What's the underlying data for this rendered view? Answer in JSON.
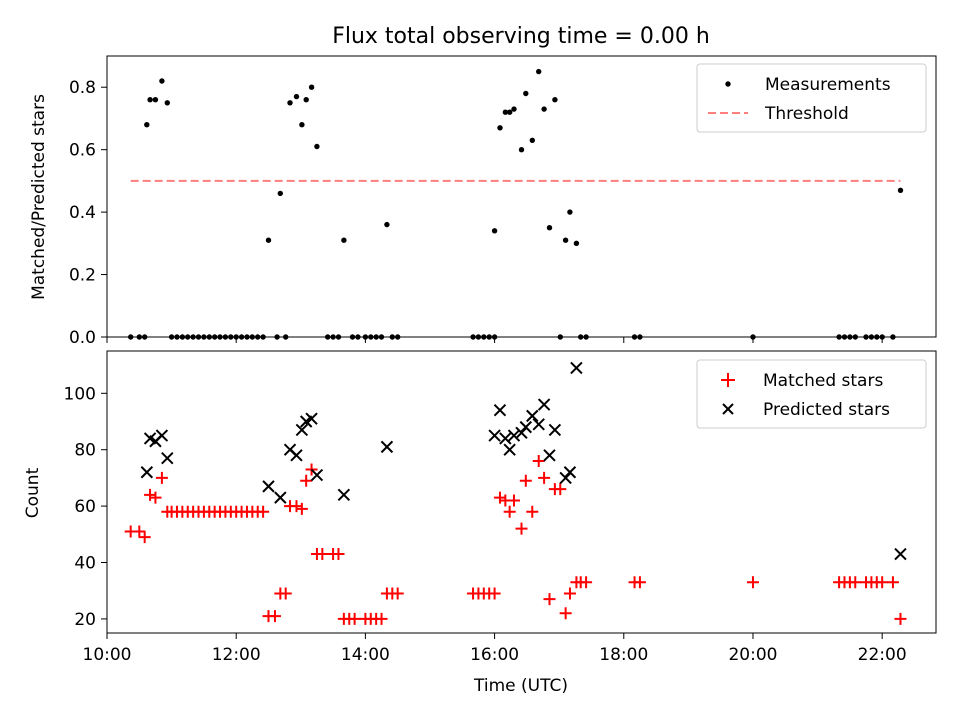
{
  "chart_data": [
    {
      "type": "scatter",
      "title": "Flux total observing time = 0.00 h",
      "xlabel": "",
      "ylabel": "Matched/Predicted stars",
      "xlim": [
        "10:00",
        "22:50"
      ],
      "ylim": [
        0,
        0.9
      ],
      "yticks": [
        0.0,
        0.2,
        0.4,
        0.6,
        0.8
      ],
      "ytick_labels": [
        "0.0",
        "0.2",
        "0.4",
        "0.6",
        "0.8"
      ],
      "grid": false,
      "legend_position": "top-right",
      "series": [
        {
          "name": "Measurements",
          "kind": "points",
          "color": "#000000",
          "points": [
            [
              "10:22",
              0.0
            ],
            [
              "10:30",
              0.0
            ],
            [
              "10:35",
              0.0
            ],
            [
              "10:37",
              0.68
            ],
            [
              "10:40",
              0.76
            ],
            [
              "10:45",
              0.76
            ],
            [
              "10:51",
              0.82
            ],
            [
              "10:56",
              0.75
            ],
            [
              "11:00",
              0.0
            ],
            [
              "11:05",
              0.0
            ],
            [
              "11:10",
              0.0
            ],
            [
              "11:15",
              0.0
            ],
            [
              "11:20",
              0.0
            ],
            [
              "11:25",
              0.0
            ],
            [
              "11:30",
              0.0
            ],
            [
              "11:35",
              0.0
            ],
            [
              "11:40",
              0.0
            ],
            [
              "11:45",
              0.0
            ],
            [
              "11:50",
              0.0
            ],
            [
              "11:55",
              0.0
            ],
            [
              "12:00",
              0.0
            ],
            [
              "12:05",
              0.0
            ],
            [
              "12:10",
              0.0
            ],
            [
              "12:15",
              0.0
            ],
            [
              "12:20",
              0.0
            ],
            [
              "12:25",
              0.0
            ],
            [
              "12:30",
              0.31
            ],
            [
              "12:38",
              0.0
            ],
            [
              "12:41",
              0.46
            ],
            [
              "12:46",
              0.0
            ],
            [
              "12:50",
              0.75
            ],
            [
              "12:56",
              0.77
            ],
            [
              "13:01",
              0.68
            ],
            [
              "13:05",
              0.76
            ],
            [
              "13:10",
              0.8
            ],
            [
              "13:15",
              0.61
            ],
            [
              "13:25",
              0.0
            ],
            [
              "13:30",
              0.0
            ],
            [
              "13:35",
              0.0
            ],
            [
              "13:40",
              0.31
            ],
            [
              "13:48",
              0.0
            ],
            [
              "13:53",
              0.0
            ],
            [
              "14:00",
              0.0
            ],
            [
              "14:05",
              0.0
            ],
            [
              "14:10",
              0.0
            ],
            [
              "14:15",
              0.0
            ],
            [
              "14:20",
              0.36
            ],
            [
              "14:25",
              0.0
            ],
            [
              "14:30",
              0.0
            ],
            [
              "15:40",
              0.0
            ],
            [
              "15:45",
              0.0
            ],
            [
              "15:50",
              0.0
            ],
            [
              "15:55",
              0.0
            ],
            [
              "16:00",
              0.34
            ],
            [
              "16:00",
              0.0
            ],
            [
              "16:05",
              0.67
            ],
            [
              "16:10",
              0.72
            ],
            [
              "16:14",
              0.72
            ],
            [
              "16:18",
              0.73
            ],
            [
              "16:25",
              0.6
            ],
            [
              "16:29",
              0.78
            ],
            [
              "16:35",
              0.63
            ],
            [
              "16:41",
              0.85
            ],
            [
              "16:46",
              0.73
            ],
            [
              "16:51",
              0.35
            ],
            [
              "16:56",
              0.76
            ],
            [
              "17:01",
              0.0
            ],
            [
              "17:06",
              0.31
            ],
            [
              "17:10",
              0.4
            ],
            [
              "17:16",
              0.3
            ],
            [
              "17:20",
              0.0
            ],
            [
              "17:25",
              0.0
            ],
            [
              "18:10",
              0.0
            ],
            [
              "18:15",
              0.0
            ],
            [
              "20:00",
              0.0
            ],
            [
              "21:20",
              0.0
            ],
            [
              "21:25",
              0.0
            ],
            [
              "21:30",
              0.0
            ],
            [
              "21:35",
              0.0
            ],
            [
              "21:45",
              0.0
            ],
            [
              "21:50",
              0.0
            ],
            [
              "21:55",
              0.0
            ],
            [
              "22:00",
              0.0
            ],
            [
              "22:10",
              0.0
            ],
            [
              "22:17",
              0.47
            ]
          ]
        },
        {
          "name": "Threshold",
          "kind": "dashed-line",
          "color": "#ff7f7f",
          "points": [
            [
              "10:22",
              0.5
            ],
            [
              "22:17",
              0.5
            ]
          ]
        }
      ]
    },
    {
      "type": "scatter",
      "title": "",
      "xlabel": "Time (UTC)",
      "ylabel": "Count",
      "xlim": [
        "10:00",
        "22:50"
      ],
      "ylim": [
        15,
        115
      ],
      "xticks": [
        "10:00",
        "12:00",
        "14:00",
        "16:00",
        "18:00",
        "20:00",
        "22:00"
      ],
      "yticks": [
        20,
        40,
        60,
        80,
        100
      ],
      "ytick_labels": [
        "20",
        "40",
        "60",
        "80",
        "100"
      ],
      "grid": false,
      "legend_position": "top-right",
      "series": [
        {
          "name": "Matched stars",
          "kind": "plus",
          "color": "#ff0000",
          "points": [
            [
              "10:22",
              51
            ],
            [
              "10:30",
              51
            ],
            [
              "10:35",
              49
            ],
            [
              "10:40",
              64
            ],
            [
              "10:45",
              63
            ],
            [
              "10:51",
              70
            ],
            [
              "10:56",
              58
            ],
            [
              "11:00",
              58
            ],
            [
              "11:05",
              58
            ],
            [
              "11:10",
              58
            ],
            [
              "11:15",
              58
            ],
            [
              "11:20",
              58
            ],
            [
              "11:25",
              58
            ],
            [
              "11:30",
              58
            ],
            [
              "11:35",
              58
            ],
            [
              "11:40",
              58
            ],
            [
              "11:45",
              58
            ],
            [
              "11:50",
              58
            ],
            [
              "11:55",
              58
            ],
            [
              "12:00",
              58
            ],
            [
              "12:05",
              58
            ],
            [
              "12:10",
              58
            ],
            [
              "12:15",
              58
            ],
            [
              "12:20",
              58
            ],
            [
              "12:25",
              58
            ],
            [
              "12:30",
              21
            ],
            [
              "12:36",
              21
            ],
            [
              "12:41",
              29
            ],
            [
              "12:46",
              29
            ],
            [
              "12:50",
              60
            ],
            [
              "12:56",
              60
            ],
            [
              "13:01",
              59
            ],
            [
              "13:05",
              69
            ],
            [
              "13:10",
              73
            ],
            [
              "13:15",
              43
            ],
            [
              "13:20",
              43
            ],
            [
              "13:30",
              43
            ],
            [
              "13:35",
              43
            ],
            [
              "13:40",
              20
            ],
            [
              "13:45",
              20
            ],
            [
              "13:50",
              20
            ],
            [
              "14:00",
              20
            ],
            [
              "14:05",
              20
            ],
            [
              "14:10",
              20
            ],
            [
              "14:15",
              20
            ],
            [
              "14:20",
              29
            ],
            [
              "14:25",
              29
            ],
            [
              "14:30",
              29
            ],
            [
              "15:40",
              29
            ],
            [
              "15:45",
              29
            ],
            [
              "15:50",
              29
            ],
            [
              "15:55",
              29
            ],
            [
              "16:00",
              29
            ],
            [
              "16:05",
              63
            ],
            [
              "16:10",
              62
            ],
            [
              "16:14",
              58
            ],
            [
              "16:18",
              62
            ],
            [
              "16:25",
              52
            ],
            [
              "16:29",
              69
            ],
            [
              "16:35",
              58
            ],
            [
              "16:41",
              76
            ],
            [
              "16:46",
              70
            ],
            [
              "16:51",
              27
            ],
            [
              "16:56",
              66
            ],
            [
              "17:01",
              66
            ],
            [
              "17:06",
              22
            ],
            [
              "17:10",
              29
            ],
            [
              "17:16",
              33
            ],
            [
              "17:20",
              33
            ],
            [
              "17:25",
              33
            ],
            [
              "18:10",
              33
            ],
            [
              "18:15",
              33
            ],
            [
              "20:00",
              33
            ],
            [
              "21:20",
              33
            ],
            [
              "21:25",
              33
            ],
            [
              "21:30",
              33
            ],
            [
              "21:35",
              33
            ],
            [
              "21:45",
              33
            ],
            [
              "21:50",
              33
            ],
            [
              "21:55",
              33
            ],
            [
              "22:00",
              33
            ],
            [
              "22:10",
              33
            ],
            [
              "22:17",
              20
            ]
          ]
        },
        {
          "name": "Predicted stars",
          "kind": "cross",
          "color": "#000000",
          "points": [
            [
              "10:37",
              72
            ],
            [
              "10:40",
              84
            ],
            [
              "10:45",
              83
            ],
            [
              "10:51",
              85
            ],
            [
              "10:56",
              77
            ],
            [
              "12:30",
              67
            ],
            [
              "12:41",
              63
            ],
            [
              "12:50",
              80
            ],
            [
              "12:56",
              78
            ],
            [
              "13:01",
              87
            ],
            [
              "13:05",
              90
            ],
            [
              "13:10",
              91
            ],
            [
              "13:15",
              71
            ],
            [
              "13:40",
              64
            ],
            [
              "14:20",
              81
            ],
            [
              "16:00",
              85
            ],
            [
              "16:05",
              94
            ],
            [
              "16:10",
              84
            ],
            [
              "16:14",
              80
            ],
            [
              "16:18",
              85
            ],
            [
              "16:25",
              86
            ],
            [
              "16:29",
              88
            ],
            [
              "16:35",
              92
            ],
            [
              "16:41",
              89
            ],
            [
              "16:46",
              96
            ],
            [
              "16:51",
              78
            ],
            [
              "16:56",
              87
            ],
            [
              "17:06",
              70
            ],
            [
              "17:10",
              72
            ],
            [
              "17:16",
              109
            ],
            [
              "22:17",
              43
            ]
          ]
        }
      ]
    }
  ]
}
